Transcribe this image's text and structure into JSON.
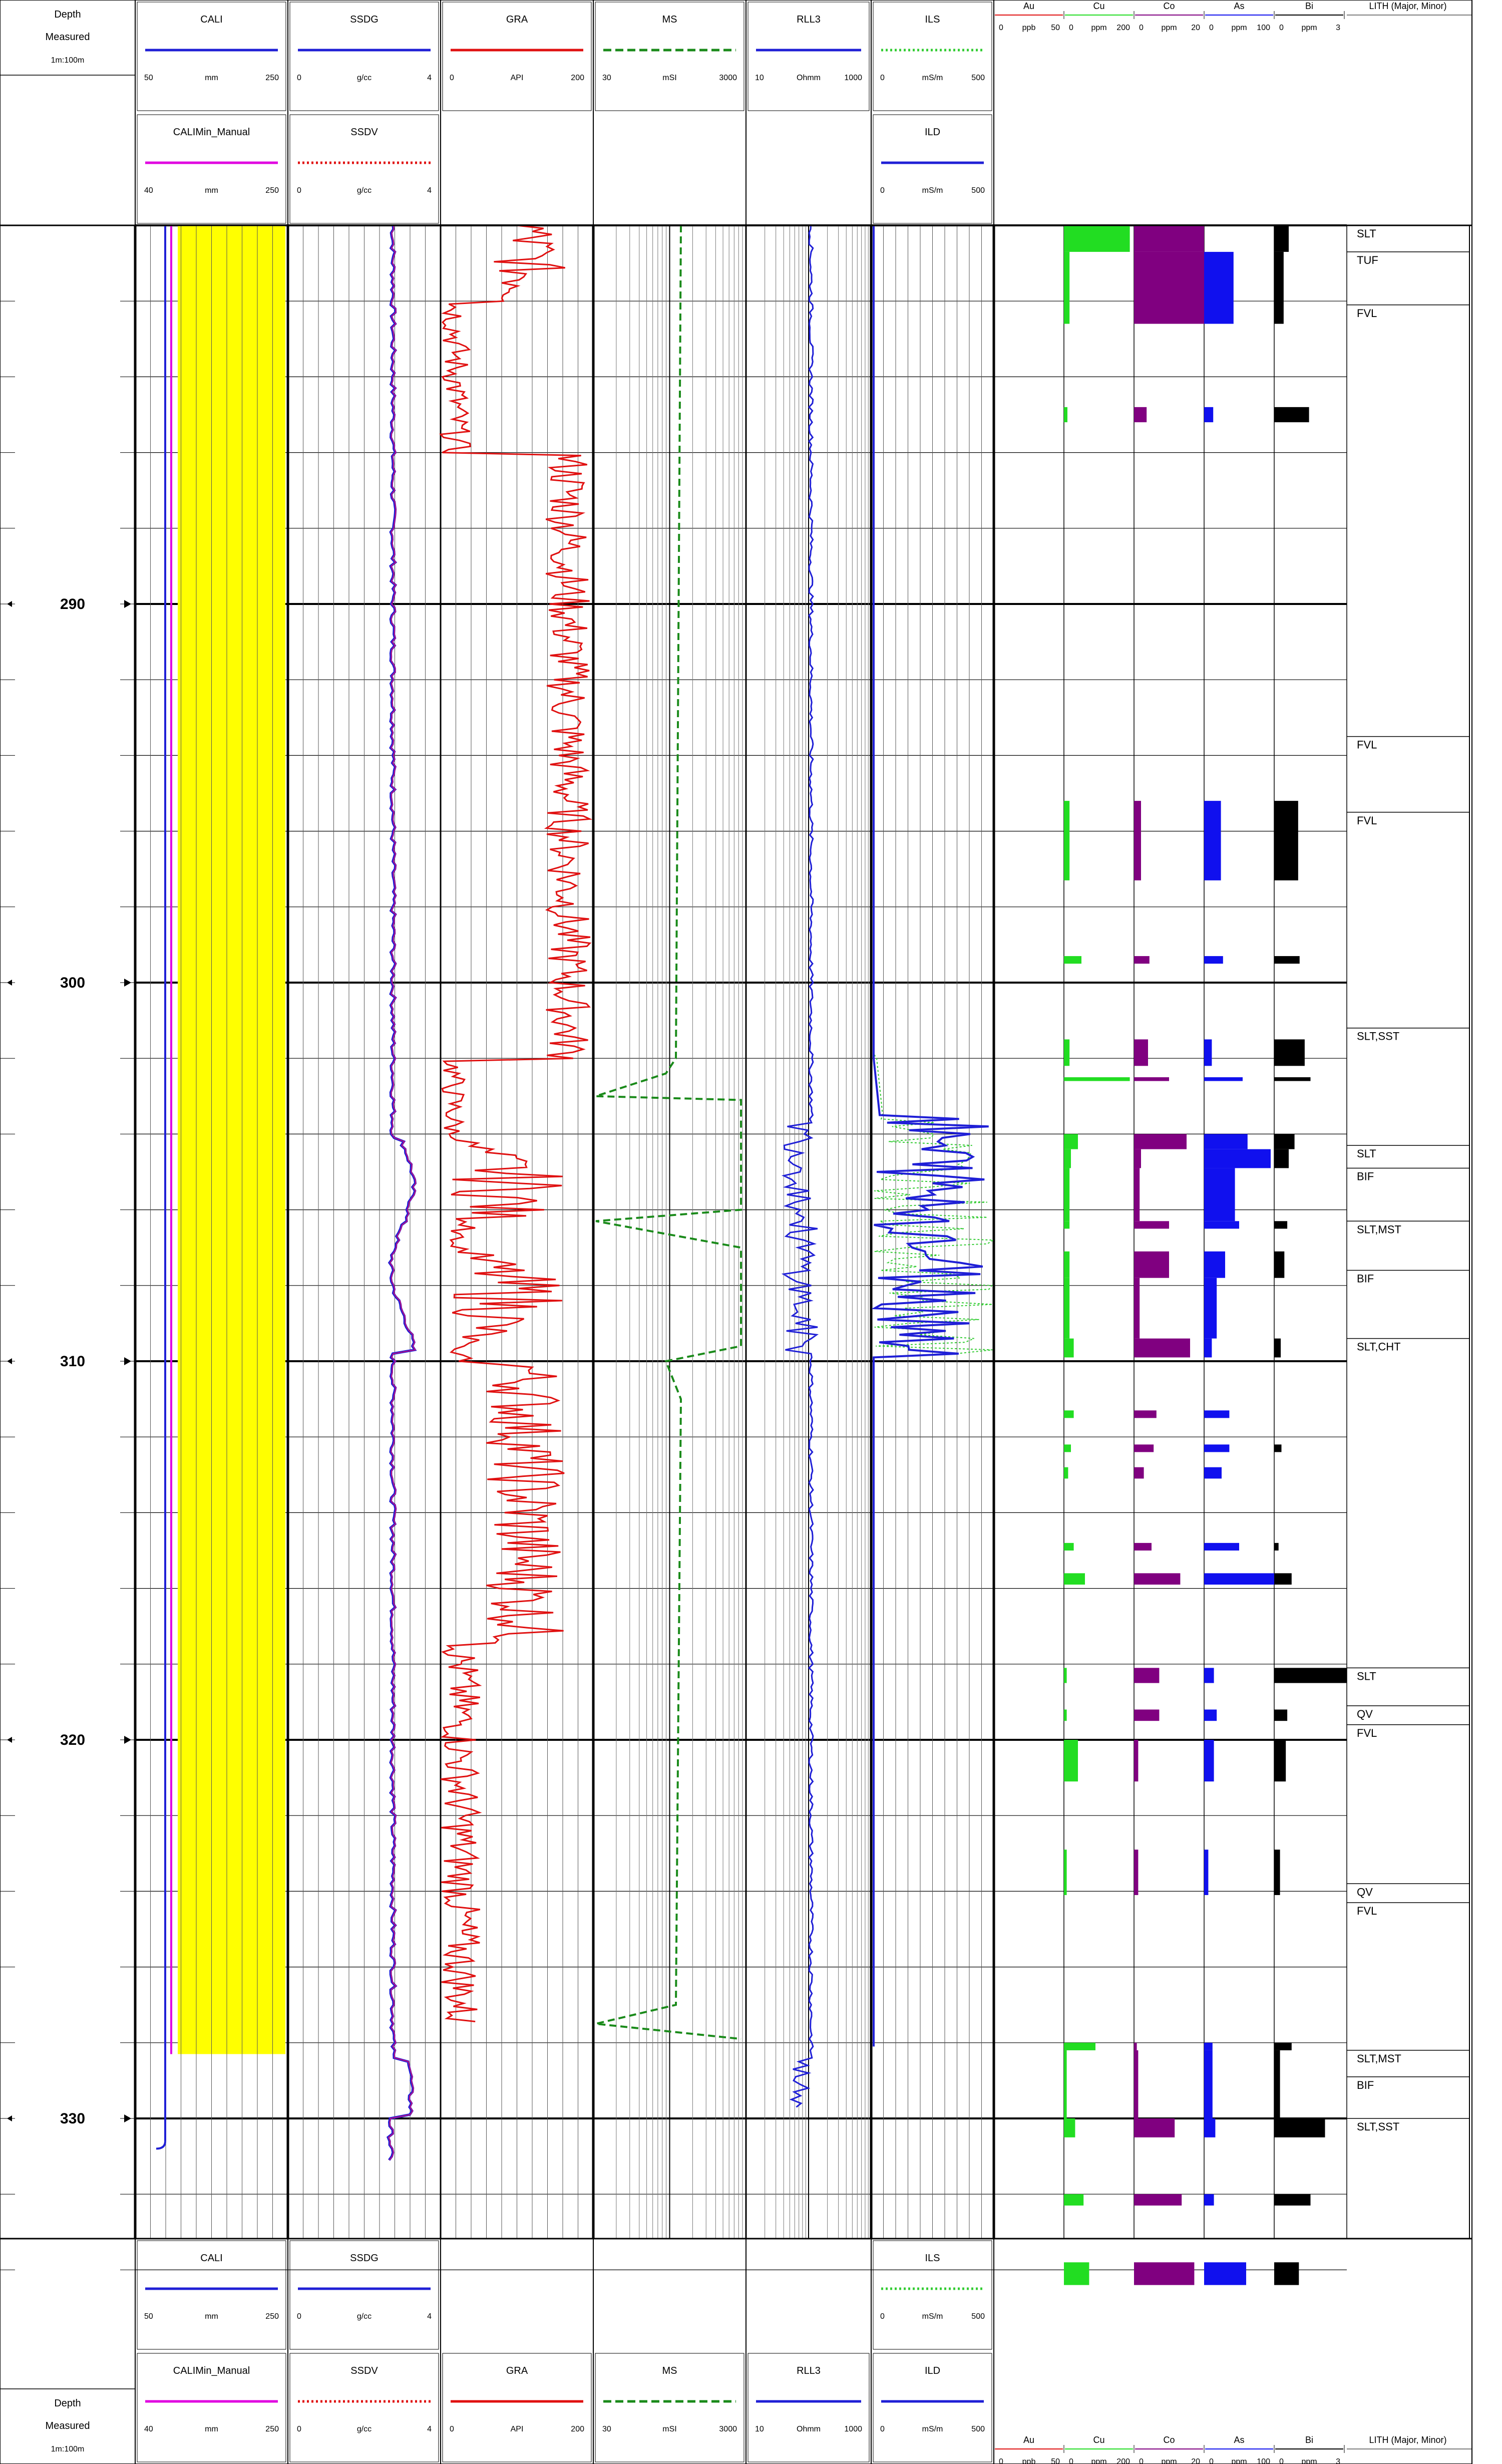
{
  "header": {
    "depth": {
      "title": "Depth",
      "sub": "Measured",
      "scale": "1m:100m"
    },
    "tracks": [
      {
        "id": "cali",
        "curves": [
          {
            "name": "CALI",
            "color": "#1f1fd6",
            "dash": "",
            "min": "50",
            "unit": "mm",
            "max": "250"
          },
          {
            "name": "CALIMin_Manual",
            "color": "#e000e0",
            "dash": "",
            "min": "40",
            "unit": "mm",
            "max": "250"
          }
        ]
      },
      {
        "id": "density",
        "curves": [
          {
            "name": "SSDG",
            "color": "#1f1fd6",
            "dash": "",
            "min": "0",
            "unit": "g/cc",
            "max": "4"
          },
          {
            "name": "SSDV",
            "color": "#e01010",
            "dash": "dot",
            "min": "0",
            "unit": "g/cc",
            "max": "4"
          }
        ]
      },
      {
        "id": "gamma",
        "curves": [
          {
            "name": "GRA",
            "color": "#e01010",
            "dash": "",
            "min": "0",
            "unit": "API",
            "max": "200"
          }
        ]
      },
      {
        "id": "mag",
        "curves": [
          {
            "name": "MS",
            "color": "#1a8a1a",
            "dash": "dash",
            "min": "30",
            "unit": "mSI",
            "max": "3000"
          }
        ]
      },
      {
        "id": "res",
        "curves": [
          {
            "name": "RLL3",
            "color": "#1f1fd6",
            "dash": "",
            "min": "10",
            "unit": "Ohmm",
            "max": "1000"
          }
        ]
      },
      {
        "id": "cond",
        "curves": [
          {
            "name": "ILS",
            "color": "#33cc33",
            "dash": "dot",
            "min": "0",
            "unit": "mS/m",
            "max": "500"
          },
          {
            "name": "ILD",
            "color": "#1f1fd6",
            "dash": "",
            "min": "0",
            "unit": "mS/m",
            "max": "500"
          }
        ]
      }
    ],
    "assay": [
      {
        "name": "Au",
        "color": "#e01010",
        "min": "0",
        "unit": "ppb",
        "max": "50"
      },
      {
        "name": "Cu",
        "color": "#22dd22",
        "min": "0",
        "unit": "ppm",
        "max": "200"
      },
      {
        "name": "Co",
        "color": "#800080",
        "min": "0",
        "unit": "ppm",
        "max": "20"
      },
      {
        "name": "As",
        "color": "#1010ee",
        "min": "0",
        "unit": "ppm",
        "max": "100"
      },
      {
        "name": "Bi",
        "color": "#000000",
        "min": "0",
        "unit": "ppm",
        "max": "3"
      }
    ],
    "lith_title": "LITH (Major, Minor)"
  },
  "depth_labels": [
    "290",
    "300",
    "310",
    "320",
    "330"
  ],
  "lithology": [
    {
      "label": "SLT",
      "top": 280.0,
      "bottom": 280.7
    },
    {
      "label": "TUF",
      "top": 280.7,
      "bottom": 282.1
    },
    {
      "label": "FVL",
      "top": 282.1,
      "bottom": 293.5
    },
    {
      "label": "FVL",
      "top": 293.5,
      "bottom": 295.5
    },
    {
      "label": "FVL",
      "top": 295.5,
      "bottom": 301.2
    },
    {
      "label": "SLT,SST",
      "top": 301.2,
      "bottom": 304.3
    },
    {
      "label": "SLT",
      "top": 304.3,
      "bottom": 304.9
    },
    {
      "label": "BIF",
      "top": 304.9,
      "bottom": 306.3
    },
    {
      "label": "SLT,MST",
      "top": 306.3,
      "bottom": 307.6
    },
    {
      "label": "BIF",
      "top": 307.6,
      "bottom": 309.4
    },
    {
      "label": "SLT,CHT",
      "top": 309.4,
      "bottom": 318.1
    },
    {
      "label": "SLT",
      "top": 318.1,
      "bottom": 319.1
    },
    {
      "label": "QV",
      "top": 319.1,
      "bottom": 319.6
    },
    {
      "label": "FVL",
      "top": 319.6,
      "bottom": 323.8
    },
    {
      "label": "QV",
      "top": 323.8,
      "bottom": 324.3
    },
    {
      "label": "FVL",
      "top": 324.3,
      "bottom": 328.2
    },
    {
      "label": "SLT,MST",
      "top": 328.2,
      "bottom": 328.9
    },
    {
      "label": "BIF",
      "top": 328.9,
      "bottom": 330.0
    },
    {
      "label": "SLT,SST",
      "top": 330.0,
      "bottom": 333.2
    }
  ],
  "assay_samples": [
    {
      "top": 280.0,
      "bottom": 280.7,
      "Au": 0,
      "Cu": 0.94,
      "Co": 1.0,
      "As": 0,
      "Bi": 0.2
    },
    {
      "top": 280.7,
      "bottom": 282.6,
      "Au": 0,
      "Cu": 0.08,
      "Co": 1.0,
      "As": 0.42,
      "Bi": 0.13
    },
    {
      "top": 284.8,
      "bottom": 285.2,
      "Au": 0,
      "Cu": 0.05,
      "Co": 0.18,
      "As": 0.13,
      "Bi": 0.48
    },
    {
      "top": 295.2,
      "bottom": 297.3,
      "Au": 0,
      "Cu": 0.08,
      "Co": 0.1,
      "As": 0.24,
      "Bi": 0.33
    },
    {
      "top": 299.3,
      "bottom": 299.5,
      "Au": 0,
      "Cu": 0.25,
      "Co": 0.22,
      "As": 0.27,
      "Bi": 0.35
    },
    {
      "top": 301.5,
      "bottom": 302.2,
      "Au": 0,
      "Cu": 0.08,
      "Co": 0.2,
      "As": 0.11,
      "Bi": 0.42
    },
    {
      "top": 302.5,
      "bottom": 302.6,
      "Au": 0,
      "Cu": 0.94,
      "Co": 0.5,
      "As": 0.55,
      "Bi": 0.5
    },
    {
      "top": 304.0,
      "bottom": 304.4,
      "Au": 0,
      "Cu": 0.2,
      "Co": 0.75,
      "As": 0.62,
      "Bi": 0.28
    },
    {
      "top": 304.4,
      "bottom": 304.9,
      "Au": 0,
      "Cu": 0.1,
      "Co": 0.1,
      "As": 0.95,
      "Bi": 0.2
    },
    {
      "top": 304.9,
      "bottom": 306.3,
      "Au": 0,
      "Cu": 0.08,
      "Co": 0.08,
      "As": 0.44,
      "Bi": 0
    },
    {
      "top": 306.3,
      "bottom": 306.5,
      "Au": 0,
      "Cu": 0.08,
      "Co": 0.5,
      "As": 0.5,
      "Bi": 0.18
    },
    {
      "top": 307.1,
      "bottom": 307.8,
      "Au": 0,
      "Cu": 0.08,
      "Co": 0.5,
      "As": 0.3,
      "Bi": 0.14
    },
    {
      "top": 307.8,
      "bottom": 309.4,
      "Au": 0,
      "Cu": 0.08,
      "Co": 0.08,
      "As": 0.18,
      "Bi": 0
    },
    {
      "top": 309.4,
      "bottom": 309.9,
      "Au": 0,
      "Cu": 0.14,
      "Co": 0.8,
      "As": 0.11,
      "Bi": 0.09
    },
    {
      "top": 311.3,
      "bottom": 311.5,
      "Au": 0,
      "Cu": 0.14,
      "Co": 0.32,
      "As": 0.36,
      "Bi": 0
    },
    {
      "top": 312.2,
      "bottom": 312.4,
      "Au": 0,
      "Cu": 0.1,
      "Co": 0.28,
      "As": 0.36,
      "Bi": 0.1
    },
    {
      "top": 312.8,
      "bottom": 313.1,
      "Au": 0,
      "Cu": 0.06,
      "Co": 0.14,
      "As": 0.25,
      "Bi": 0
    },
    {
      "top": 314.8,
      "bottom": 315.0,
      "Au": 0,
      "Cu": 0.14,
      "Co": 0.25,
      "As": 0.5,
      "Bi": 0.06
    },
    {
      "top": 315.6,
      "bottom": 315.9,
      "Au": 0,
      "Cu": 0.3,
      "Co": 0.66,
      "As": 1.0,
      "Bi": 0.24
    },
    {
      "top": 318.1,
      "bottom": 318.5,
      "Au": 0,
      "Cu": 0.04,
      "Co": 0.36,
      "As": 0.14,
      "Bi": 1.0
    },
    {
      "top": 319.2,
      "bottom": 319.5,
      "Au": 0,
      "Cu": 0.04,
      "Co": 0.36,
      "As": 0.18,
      "Bi": 0.18
    },
    {
      "top": 320.0,
      "bottom": 321.1,
      "Au": 0,
      "Cu": 0.2,
      "Co": 0.06,
      "As": 0.14,
      "Bi": 0.16
    },
    {
      "top": 322.9,
      "bottom": 324.1,
      "Au": 0,
      "Cu": 0.04,
      "Co": 0.06,
      "As": 0.06,
      "Bi": 0.08
    },
    {
      "top": 328.0,
      "bottom": 328.2,
      "Au": 0,
      "Cu": 0.45,
      "Co": 0.04,
      "As": 0.12,
      "Bi": 0.24
    },
    {
      "top": 328.2,
      "bottom": 330.0,
      "Au": 0,
      "Cu": 0.04,
      "Co": 0.06,
      "As": 0.12,
      "Bi": 0.08
    },
    {
      "top": 330.0,
      "bottom": 330.5,
      "Au": 0,
      "Cu": 0.16,
      "Co": 0.58,
      "As": 0.16,
      "Bi": 0.7
    },
    {
      "top": 332.0,
      "bottom": 332.3,
      "Au": 0,
      "Cu": 0.28,
      "Co": 0.68,
      "As": 0.14,
      "Bi": 0.5
    },
    {
      "top": 333.8,
      "bottom": 334.4,
      "Au": 0,
      "Cu": 0.36,
      "Co": 0.86,
      "As": 0.6,
      "Bi": 0.34
    }
  ]
}
